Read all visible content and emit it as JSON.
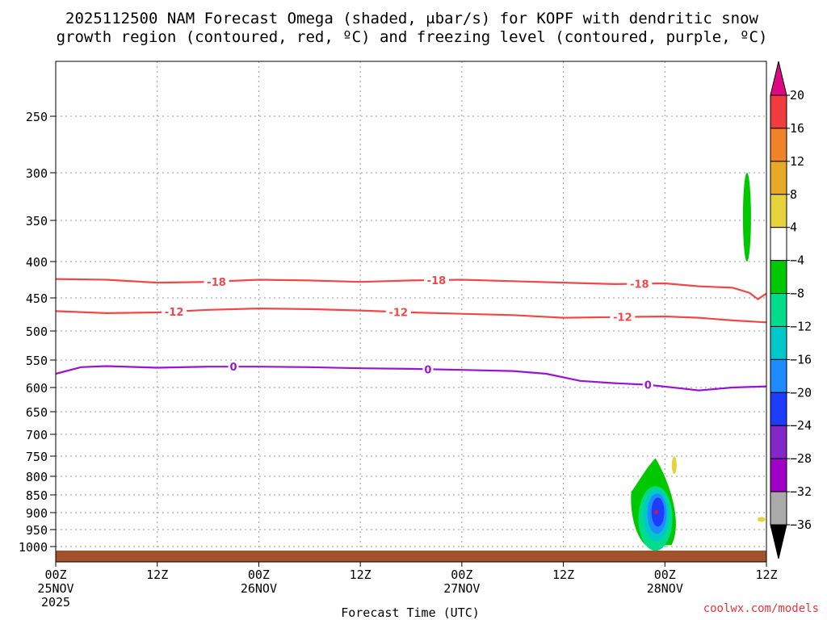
{
  "chart_data": {
    "type": "time-pressure cross section",
    "title_line1": "2025112500 NAM Forecast Omega (shaded, μbar/s) for KOPF with dendritic snow",
    "title_line2": "growth region (contoured, red, ºC) and freezing level (contoured, purple, ºC)",
    "xlabel": "Forecast Time (UTC)",
    "x_ticks": [
      {
        "hour": 0,
        "label": "00Z",
        "sub": "25NOV",
        "year": "2025"
      },
      {
        "hour": 12,
        "label": "12Z",
        "sub": "",
        "year": ""
      },
      {
        "hour": 24,
        "label": "00Z",
        "sub": "26NOV",
        "year": ""
      },
      {
        "hour": 36,
        "label": "12Z",
        "sub": "",
        "year": ""
      },
      {
        "hour": 48,
        "label": "00Z",
        "sub": "27NOV",
        "year": ""
      },
      {
        "hour": 60,
        "label": "12Z",
        "sub": "",
        "year": ""
      },
      {
        "hour": 72,
        "label": "00Z",
        "sub": "28NOV",
        "year": ""
      },
      {
        "hour": 84,
        "label": "12Z",
        "sub": "",
        "year": ""
      }
    ],
    "xlim_hours": [
      0,
      84
    ],
    "y_ticks_hpa": [
      250,
      300,
      350,
      400,
      450,
      500,
      550,
      600,
      650,
      700,
      750,
      800,
      850,
      900,
      950,
      1000
    ],
    "ylim_hpa": [
      200,
      1025
    ],
    "grid": true,
    "contours": [
      {
        "name": "dendritic -18C",
        "color": "#f04848",
        "label": "-18",
        "label_hours": [
          19,
          45,
          69
        ],
        "points": [
          [
            0,
            424
          ],
          [
            6,
            425
          ],
          [
            12,
            429
          ],
          [
            18,
            428
          ],
          [
            24,
            425
          ],
          [
            30,
            426
          ],
          [
            36,
            428
          ],
          [
            42,
            426
          ],
          [
            48,
            425
          ],
          [
            54,
            427
          ],
          [
            60,
            429
          ],
          [
            66,
            431
          ],
          [
            72,
            430
          ],
          [
            76,
            434
          ],
          [
            80,
            436
          ],
          [
            82,
            443
          ],
          [
            83,
            452
          ],
          [
            84,
            444
          ]
        ]
      },
      {
        "name": "dendritic -12C",
        "color": "#f04848",
        "label": "-12",
        "label_hours": [
          14,
          40.5,
          67
        ],
        "points": [
          [
            0,
            470
          ],
          [
            6,
            473
          ],
          [
            12,
            472
          ],
          [
            18,
            468
          ],
          [
            24,
            466
          ],
          [
            30,
            467
          ],
          [
            36,
            469
          ],
          [
            42,
            472
          ],
          [
            48,
            474
          ],
          [
            54,
            476
          ],
          [
            60,
            480
          ],
          [
            66,
            479
          ],
          [
            72,
            478
          ],
          [
            76,
            480
          ],
          [
            80,
            484
          ],
          [
            84,
            487
          ]
        ]
      },
      {
        "name": "freezing level 0C",
        "color": "#9a14d0",
        "label": "0",
        "label_hours": [
          21,
          44,
          70
        ],
        "points": [
          [
            0,
            575
          ],
          [
            3,
            563
          ],
          [
            6,
            561
          ],
          [
            12,
            564
          ],
          [
            18,
            562
          ],
          [
            24,
            562
          ],
          [
            30,
            563
          ],
          [
            36,
            565
          ],
          [
            42,
            566
          ],
          [
            48,
            568
          ],
          [
            54,
            570
          ],
          [
            58,
            575
          ],
          [
            62,
            588
          ],
          [
            66,
            592
          ],
          [
            70,
            595
          ],
          [
            74,
            602
          ],
          [
            76,
            606
          ],
          [
            80,
            600
          ],
          [
            84,
            598
          ]
        ]
      }
    ],
    "omega_features": [
      {
        "name": "upper green omega cell",
        "value": -6,
        "hour_center": 81.7,
        "pressure_range_hpa": [
          300,
          400
        ]
      },
      {
        "name": "lower-level rising motion core",
        "max_value": -24,
        "hour_center": 70.5,
        "pressure_range_hpa": [
          755,
          1000
        ]
      },
      {
        "name": "yellow weak sinking sliver",
        "value": 4,
        "hour_center": 73.1,
        "pressure_range_hpa": [
          755,
          790
        ]
      },
      {
        "name": "yellow weak sinking dot",
        "value": 4,
        "hour_center": 83.4,
        "pressure_range_hpa": [
          915,
          925
        ]
      }
    ],
    "colorbar": {
      "labels": [
        "20",
        "16",
        "12",
        "8",
        "4",
        "−4",
        "−8",
        "−12",
        "−16",
        "−20",
        "−24",
        "−28",
        "−32",
        "−36"
      ],
      "colors": [
        "#f03c3c",
        "#f08228",
        "#e6aa28",
        "#e6d23c",
        "#ffffff",
        "#00c800",
        "#00dc8c",
        "#00c8c8",
        "#1e8cff",
        "#1e3cff",
        "#8228c8",
        "#a000c8",
        "#aaaaaa"
      ],
      "top_cap_color": "#dc0a82",
      "bottom_cap_color": "#000000"
    },
    "terrain_color": "#a0522d"
  },
  "credit": "coolwx.com/models"
}
